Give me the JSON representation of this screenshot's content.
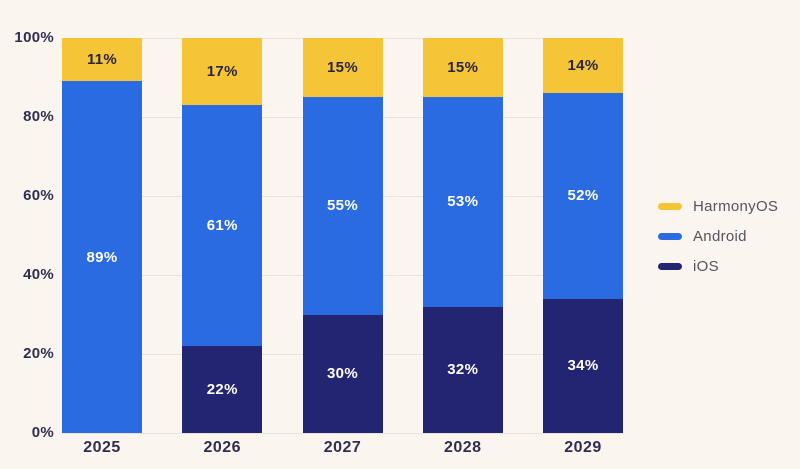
{
  "chart_data": {
    "type": "bar",
    "subtype": "stacked-percentage-column",
    "categories": [
      "2025",
      "2026",
      "2027",
      "2028",
      "2029"
    ],
    "series": [
      {
        "name": "HarmonyOS",
        "values": [
          11,
          17,
          15,
          15,
          14
        ],
        "color": "#f6c437",
        "label_color": "#2b2640"
      },
      {
        "name": "Android",
        "values": [
          89,
          61,
          55,
          53,
          52
        ],
        "color": "#2b6be1",
        "label_color": "#ffffff"
      },
      {
        "name": "iOS",
        "values": [
          0,
          22,
          30,
          32,
          34
        ],
        "color": "#232472",
        "label_color": "#ffffff"
      }
    ],
    "data_labels": [
      [
        "11%",
        "89%",
        ""
      ],
      [
        "17%",
        "61%",
        "22%"
      ],
      [
        "15%",
        "55%",
        "30%"
      ],
      [
        "15%",
        "53%",
        "32%"
      ],
      [
        "14%",
        "52%",
        "34%"
      ]
    ],
    "yticks": [
      {
        "value": 100,
        "label": "100%"
      },
      {
        "value": 80,
        "label": "80%"
      },
      {
        "value": 60,
        "label": "60%"
      },
      {
        "value": 40,
        "label": "40%"
      },
      {
        "value": 20,
        "label": "20%"
      },
      {
        "value": 0,
        "label": "0%"
      }
    ],
    "ylim": [
      0,
      100
    ],
    "grid": true,
    "legend_position": "right",
    "legend": [
      "HarmonyOS",
      "Android",
      "iOS"
    ],
    "title": "",
    "xlabel": "",
    "ylabel": ""
  },
  "colors": {
    "background": "#faf6ef",
    "gridline": "#e8e4dd",
    "axis_text": "#312d52",
    "legend_text": "#55545f"
  }
}
